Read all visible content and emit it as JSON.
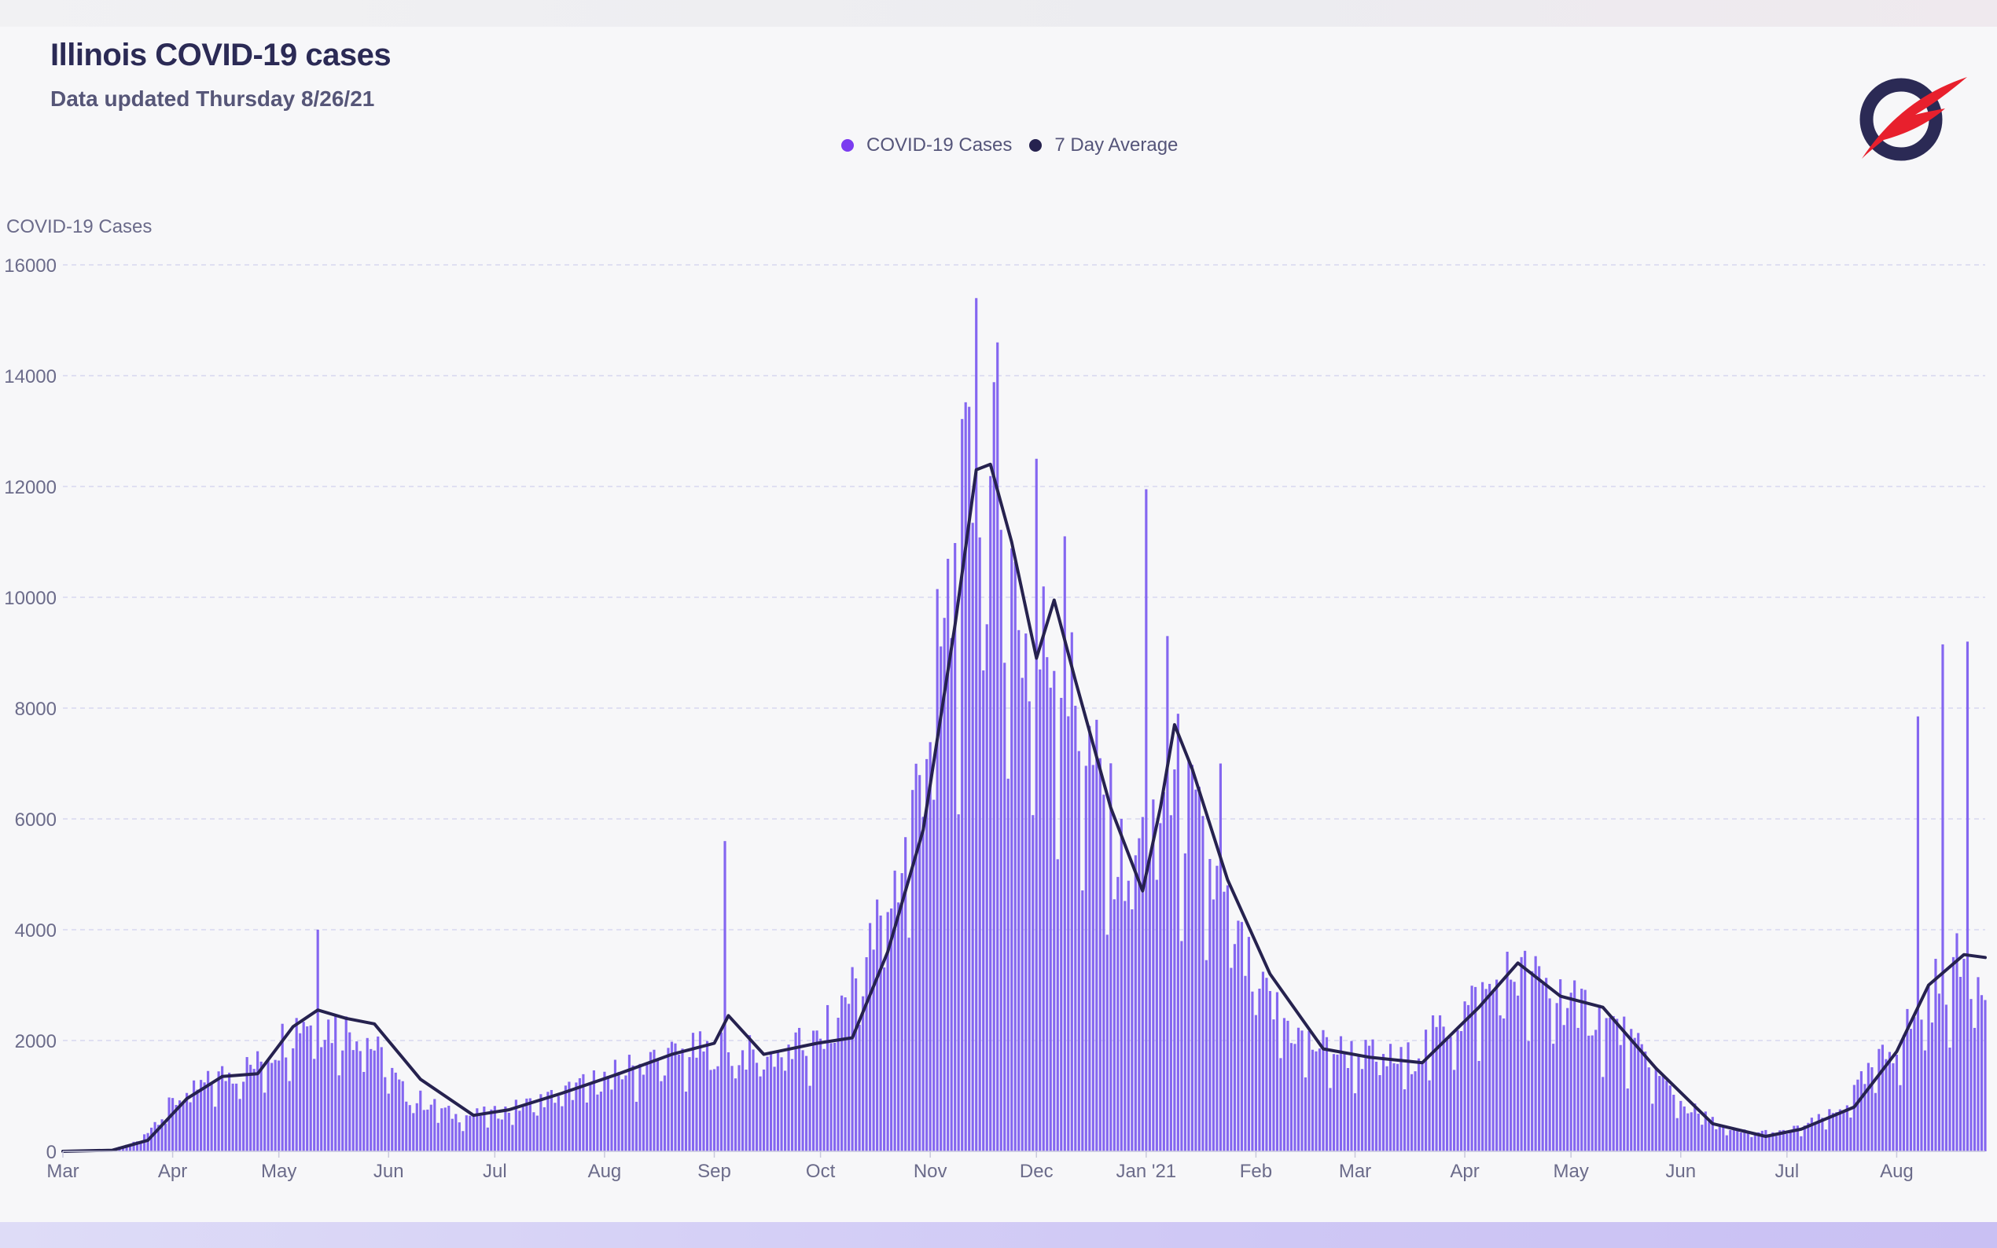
{
  "header": {
    "title": "Illinois COVID-19 cases",
    "subtitle": "Data updated Thursday 8/26/21"
  },
  "legend": [
    {
      "label": "COVID-19 Cases",
      "color": "#7b3cf0"
    },
    {
      "label": "7 Day Average",
      "color": "#26224f"
    }
  ],
  "logo": {
    "icon": "quill-logo-icon",
    "ring_color": "#2b2a55",
    "quill_color": "#e8202d"
  },
  "colors": {
    "bars": "#8466f0",
    "line": "#26224f",
    "grid": "#d7d7ef",
    "axis_text": "#6b6b8a"
  },
  "chart_data": {
    "type": "bar",
    "title": "Illinois COVID-19 cases",
    "subtitle": "Data updated Thursday 8/26/21",
    "ylabel": "COVID-19 Cases",
    "xlabel": "",
    "ylim": [
      0,
      16000
    ],
    "yticks": [
      0,
      2000,
      4000,
      6000,
      8000,
      10000,
      12000,
      14000,
      16000
    ],
    "x_start": "2020-03-01",
    "x_end": "2021-08-26",
    "x_ticks": [
      {
        "date": "2020-03-01",
        "label": "Mar"
      },
      {
        "date": "2020-04-01",
        "label": "Apr"
      },
      {
        "date": "2020-05-01",
        "label": "May"
      },
      {
        "date": "2020-06-01",
        "label": "Jun"
      },
      {
        "date": "2020-07-01",
        "label": "Jul"
      },
      {
        "date": "2020-08-01",
        "label": "Aug"
      },
      {
        "date": "2020-09-01",
        "label": "Sep"
      },
      {
        "date": "2020-10-01",
        "label": "Oct"
      },
      {
        "date": "2020-11-01",
        "label": "Nov"
      },
      {
        "date": "2020-12-01",
        "label": "Dec"
      },
      {
        "date": "2021-01-01",
        "label": "Jan '21"
      },
      {
        "date": "2021-02-01",
        "label": "Feb"
      },
      {
        "date": "2021-03-01",
        "label": "Mar"
      },
      {
        "date": "2021-04-01",
        "label": "Apr"
      },
      {
        "date": "2021-05-01",
        "label": "May"
      },
      {
        "date": "2021-06-01",
        "label": "Jun"
      },
      {
        "date": "2021-07-01",
        "label": "Jul"
      },
      {
        "date": "2021-08-01",
        "label": "Aug"
      }
    ],
    "grid": true,
    "legend_position": "top-center",
    "series": [
      {
        "name": "COVID-19 Cases",
        "kind": "bar",
        "color": "#8466f0",
        "profile": [
          {
            "date": "2020-03-01",
            "value": 0
          },
          {
            "date": "2020-03-15",
            "value": 30
          },
          {
            "date": "2020-03-22",
            "value": 180
          },
          {
            "date": "2020-04-01",
            "value": 900
          },
          {
            "date": "2020-04-15",
            "value": 1400
          },
          {
            "date": "2020-04-25",
            "value": 1600
          },
          {
            "date": "2020-05-08",
            "value": 2500
          },
          {
            "date": "2020-05-14",
            "value": 2350
          },
          {
            "date": "2020-05-25",
            "value": 2200
          },
          {
            "date": "2020-06-05",
            "value": 1100
          },
          {
            "date": "2020-06-20",
            "value": 650
          },
          {
            "date": "2020-07-01",
            "value": 700
          },
          {
            "date": "2020-07-15",
            "value": 950
          },
          {
            "date": "2020-08-01",
            "value": 1350
          },
          {
            "date": "2020-08-15",
            "value": 1700
          },
          {
            "date": "2020-09-01",
            "value": 1900
          },
          {
            "date": "2020-09-15",
            "value": 1750
          },
          {
            "date": "2020-10-01",
            "value": 2000
          },
          {
            "date": "2020-10-15",
            "value": 3700
          },
          {
            "date": "2020-10-25",
            "value": 5500
          },
          {
            "date": "2020-11-05",
            "value": 9500
          },
          {
            "date": "2020-11-13",
            "value": 12300
          },
          {
            "date": "2020-11-20",
            "value": 11800
          },
          {
            "date": "2020-11-30",
            "value": 8800
          },
          {
            "date": "2020-12-05",
            "value": 9500
          },
          {
            "date": "2020-12-15",
            "value": 7500
          },
          {
            "date": "2020-12-25",
            "value": 5300
          },
          {
            "date": "2021-01-02",
            "value": 5800
          },
          {
            "date": "2021-01-10",
            "value": 6800
          },
          {
            "date": "2021-01-20",
            "value": 5000
          },
          {
            "date": "2021-02-01",
            "value": 3000
          },
          {
            "date": "2021-02-15",
            "value": 2000
          },
          {
            "date": "2021-03-01",
            "value": 1800
          },
          {
            "date": "2021-03-15",
            "value": 1650
          },
          {
            "date": "2021-04-01",
            "value": 2600
          },
          {
            "date": "2021-04-15",
            "value": 3300
          },
          {
            "date": "2021-05-01",
            "value": 2800
          },
          {
            "date": "2021-05-15",
            "value": 2200
          },
          {
            "date": "2021-06-01",
            "value": 900
          },
          {
            "date": "2021-06-15",
            "value": 350
          },
          {
            "date": "2021-07-01",
            "value": 350
          },
          {
            "date": "2021-07-15",
            "value": 700
          },
          {
            "date": "2021-08-01",
            "value": 2000
          },
          {
            "date": "2021-08-15",
            "value": 3300
          },
          {
            "date": "2021-08-26",
            "value": 3500
          }
        ],
        "spikes": [
          {
            "date": "2020-05-12",
            "value": 4000
          },
          {
            "date": "2020-09-04",
            "value": 5600
          },
          {
            "date": "2020-11-14",
            "value": 15400
          },
          {
            "date": "2020-11-20",
            "value": 14600
          },
          {
            "date": "2020-12-01",
            "value": 12500
          },
          {
            "date": "2020-12-09",
            "value": 11100
          },
          {
            "date": "2021-01-01",
            "value": 11950
          },
          {
            "date": "2021-01-07",
            "value": 9300
          },
          {
            "date": "2021-01-22",
            "value": 7000
          },
          {
            "date": "2021-08-07",
            "value": 7850
          },
          {
            "date": "2021-08-14",
            "value": 9150
          },
          {
            "date": "2021-08-21",
            "value": 9200
          }
        ]
      },
      {
        "name": "7 Day Average",
        "kind": "line",
        "color": "#26224f",
        "points": [
          {
            "date": "2020-03-01",
            "value": 0
          },
          {
            "date": "2020-03-15",
            "value": 20
          },
          {
            "date": "2020-03-25",
            "value": 200
          },
          {
            "date": "2020-04-05",
            "value": 950
          },
          {
            "date": "2020-04-15",
            "value": 1350
          },
          {
            "date": "2020-04-25",
            "value": 1400
          },
          {
            "date": "2020-05-05",
            "value": 2250
          },
          {
            "date": "2020-05-12",
            "value": 2550
          },
          {
            "date": "2020-05-20",
            "value": 2400
          },
          {
            "date": "2020-05-28",
            "value": 2300
          },
          {
            "date": "2020-06-10",
            "value": 1300
          },
          {
            "date": "2020-06-25",
            "value": 650
          },
          {
            "date": "2020-07-05",
            "value": 750
          },
          {
            "date": "2020-07-20",
            "value": 1050
          },
          {
            "date": "2020-08-05",
            "value": 1400
          },
          {
            "date": "2020-08-20",
            "value": 1750
          },
          {
            "date": "2020-09-01",
            "value": 1950
          },
          {
            "date": "2020-09-05",
            "value": 2450
          },
          {
            "date": "2020-09-15",
            "value": 1750
          },
          {
            "date": "2020-09-30",
            "value": 1950
          },
          {
            "date": "2020-10-10",
            "value": 2050
          },
          {
            "date": "2020-10-20",
            "value": 3600
          },
          {
            "date": "2020-10-30",
            "value": 5800
          },
          {
            "date": "2020-11-08",
            "value": 9500
          },
          {
            "date": "2020-11-14",
            "value": 12300
          },
          {
            "date": "2020-11-18",
            "value": 12400
          },
          {
            "date": "2020-11-24",
            "value": 11000
          },
          {
            "date": "2020-12-01",
            "value": 8900
          },
          {
            "date": "2020-12-06",
            "value": 9950
          },
          {
            "date": "2020-12-12",
            "value": 8500
          },
          {
            "date": "2020-12-22",
            "value": 6200
          },
          {
            "date": "2020-12-31",
            "value": 4700
          },
          {
            "date": "2021-01-05",
            "value": 6200
          },
          {
            "date": "2021-01-09",
            "value": 7700
          },
          {
            "date": "2021-01-14",
            "value": 6900
          },
          {
            "date": "2021-01-24",
            "value": 4900
          },
          {
            "date": "2021-02-05",
            "value": 3200
          },
          {
            "date": "2021-02-20",
            "value": 1850
          },
          {
            "date": "2021-03-05",
            "value": 1700
          },
          {
            "date": "2021-03-20",
            "value": 1600
          },
          {
            "date": "2021-04-05",
            "value": 2600
          },
          {
            "date": "2021-04-16",
            "value": 3400
          },
          {
            "date": "2021-04-28",
            "value": 2800
          },
          {
            "date": "2021-05-10",
            "value": 2600
          },
          {
            "date": "2021-05-25",
            "value": 1500
          },
          {
            "date": "2021-06-10",
            "value": 500
          },
          {
            "date": "2021-06-25",
            "value": 270
          },
          {
            "date": "2021-07-05",
            "value": 400
          },
          {
            "date": "2021-07-20",
            "value": 800
          },
          {
            "date": "2021-08-01",
            "value": 1800
          },
          {
            "date": "2021-08-10",
            "value": 3000
          },
          {
            "date": "2021-08-20",
            "value": 3550
          },
          {
            "date": "2021-08-26",
            "value": 3500
          }
        ]
      }
    ]
  }
}
